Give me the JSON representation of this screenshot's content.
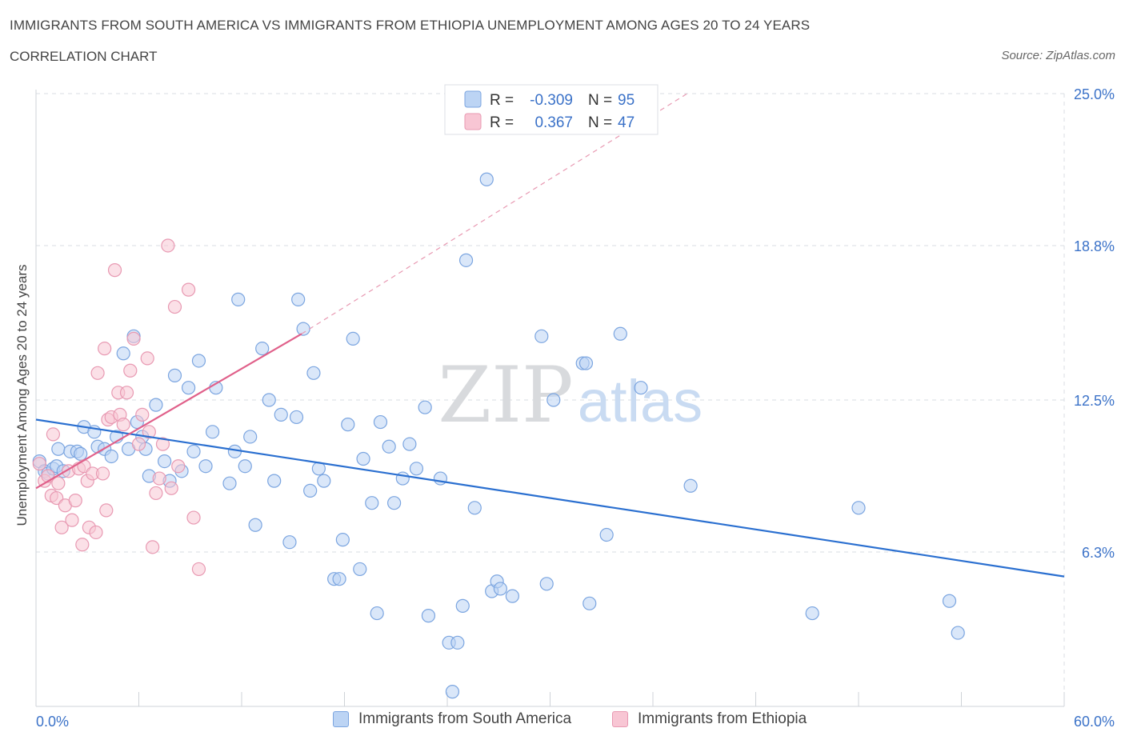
{
  "header": {
    "title": "IMMIGRANTS FROM SOUTH AMERICA VS IMMIGRANTS FROM ETHIOPIA UNEMPLOYMENT AMONG AGES 20 TO 24 YEARS",
    "subtitle": "CORRELATION CHART",
    "source": "Source: ZipAtlas.com"
  },
  "watermark": {
    "zip": "ZIP",
    "atlas": "atlas"
  },
  "colors": {
    "blue_fill": "#bcd4f4",
    "blue_stroke": "#7ba5e0",
    "blue_line": "#2a6fd0",
    "pink_fill": "#f8c6d4",
    "pink_stroke": "#e899b2",
    "pink_line": "#e0608a",
    "value_text": "#3b72c8",
    "grid": "#d9dde3"
  },
  "legend_top": {
    "rows": [
      {
        "r_label": "R =",
        "r_value": "-0.309",
        "n_label": "N =",
        "n_value": "95"
      },
      {
        "r_label": "R =",
        "r_value": "0.367",
        "n_label": "N =",
        "n_value": "47"
      }
    ]
  },
  "legend_bottom": {
    "items": [
      "Immigrants from South America",
      "Immigrants from Ethiopia"
    ]
  },
  "chart_data": {
    "type": "scatter",
    "title": "IMMIGRANTS FROM SOUTH AMERICA VS IMMIGRANTS FROM ETHIOPIA UNEMPLOYMENT AMONG AGES 20 TO 24 YEARS",
    "xlabel": "",
    "ylabel": "Unemployment Among Ages 20 to 24 years",
    "xlim": [
      0,
      60
    ],
    "ylim": [
      0,
      25.0
    ],
    "x_tick_labels": [
      "0.0%",
      "60.0%"
    ],
    "y_ticks": [
      6.3,
      12.5,
      18.8,
      25.0
    ],
    "y_tick_labels": [
      "6.3%",
      "12.5%",
      "18.8%",
      "25.0%"
    ],
    "grid": true,
    "legend_placement": "top-center",
    "series": [
      {
        "name": "Immigrants from South America",
        "r": -0.309,
        "n": 95,
        "trend": {
          "x": [
            0,
            60
          ],
          "y": [
            11.7,
            5.3
          ]
        },
        "points": [
          [
            0.2,
            10.0
          ],
          [
            0.5,
            9.6
          ],
          [
            0.7,
            9.5
          ],
          [
            1.0,
            9.7
          ],
          [
            1.2,
            9.8
          ],
          [
            1.3,
            10.5
          ],
          [
            1.6,
            9.6
          ],
          [
            2.0,
            10.4
          ],
          [
            2.4,
            10.4
          ],
          [
            2.6,
            10.3
          ],
          [
            2.8,
            11.4
          ],
          [
            3.4,
            11.2
          ],
          [
            3.6,
            10.6
          ],
          [
            4.0,
            10.5
          ],
          [
            4.4,
            10.2
          ],
          [
            4.7,
            11.0
          ],
          [
            5.1,
            14.4
          ],
          [
            5.4,
            10.5
          ],
          [
            5.7,
            15.1
          ],
          [
            5.9,
            11.6
          ],
          [
            6.2,
            11.0
          ],
          [
            6.4,
            10.5
          ],
          [
            6.6,
            9.4
          ],
          [
            7.0,
            12.3
          ],
          [
            7.5,
            10.0
          ],
          [
            7.8,
            9.2
          ],
          [
            8.1,
            13.5
          ],
          [
            8.5,
            9.6
          ],
          [
            8.9,
            13.0
          ],
          [
            9.2,
            10.4
          ],
          [
            9.5,
            14.1
          ],
          [
            9.9,
            9.8
          ],
          [
            10.3,
            11.2
          ],
          [
            10.5,
            13.0
          ],
          [
            11.3,
            9.1
          ],
          [
            11.6,
            10.4
          ],
          [
            11.8,
            16.6
          ],
          [
            12.2,
            9.8
          ],
          [
            12.5,
            11.0
          ],
          [
            12.8,
            7.4
          ],
          [
            13.2,
            14.6
          ],
          [
            13.6,
            12.5
          ],
          [
            13.9,
            9.2
          ],
          [
            14.3,
            11.9
          ],
          [
            14.8,
            6.7
          ],
          [
            15.2,
            11.8
          ],
          [
            15.3,
            16.6
          ],
          [
            15.6,
            15.4
          ],
          [
            16.0,
            8.8
          ],
          [
            16.2,
            13.6
          ],
          [
            16.5,
            9.7
          ],
          [
            16.8,
            9.2
          ],
          [
            17.4,
            5.2
          ],
          [
            17.7,
            5.2
          ],
          [
            17.9,
            6.8
          ],
          [
            18.2,
            11.5
          ],
          [
            18.5,
            15.0
          ],
          [
            18.9,
            5.6
          ],
          [
            19.1,
            10.1
          ],
          [
            19.6,
            8.3
          ],
          [
            19.9,
            3.8
          ],
          [
            20.1,
            11.6
          ],
          [
            20.6,
            10.6
          ],
          [
            20.9,
            8.3
          ],
          [
            21.4,
            9.3
          ],
          [
            21.8,
            10.7
          ],
          [
            22.2,
            9.7
          ],
          [
            22.7,
            12.2
          ],
          [
            22.9,
            3.7
          ],
          [
            23.6,
            9.3
          ],
          [
            24.1,
            2.6
          ],
          [
            24.3,
            0.6
          ],
          [
            24.6,
            2.6
          ],
          [
            24.9,
            4.1
          ],
          [
            25.1,
            18.2
          ],
          [
            25.6,
            8.1
          ],
          [
            26.3,
            21.5
          ],
          [
            26.6,
            4.7
          ],
          [
            26.9,
            5.1
          ],
          [
            27.1,
            4.8
          ],
          [
            27.8,
            4.5
          ],
          [
            29.5,
            15.1
          ],
          [
            29.8,
            5.0
          ],
          [
            30.2,
            12.5
          ],
          [
            31.9,
            14.0
          ],
          [
            32.1,
            14.0
          ],
          [
            32.3,
            4.2
          ],
          [
            33.3,
            7.0
          ],
          [
            34.1,
            15.2
          ],
          [
            35.3,
            13.0
          ],
          [
            38.2,
            9.0
          ],
          [
            45.3,
            3.8
          ],
          [
            48.0,
            8.1
          ],
          [
            53.3,
            4.3
          ],
          [
            53.8,
            3.0
          ]
        ]
      },
      {
        "name": "Immigrants from Ethiopia",
        "r": 0.367,
        "n": 47,
        "trend": {
          "x": [
            0,
            15.5
          ],
          "y": [
            8.9,
            15.2
          ]
        },
        "trend_extension": {
          "x": [
            15.5,
            38
          ],
          "y": [
            15.2,
            25.0
          ]
        },
        "points": [
          [
            0.2,
            9.9
          ],
          [
            0.5,
            9.2
          ],
          [
            0.7,
            9.4
          ],
          [
            0.9,
            8.6
          ],
          [
            1.0,
            11.1
          ],
          [
            1.2,
            8.5
          ],
          [
            1.3,
            9.1
          ],
          [
            1.5,
            7.3
          ],
          [
            1.7,
            8.2
          ],
          [
            1.9,
            9.6
          ],
          [
            2.1,
            7.6
          ],
          [
            2.3,
            8.4
          ],
          [
            2.5,
            9.7
          ],
          [
            2.7,
            6.6
          ],
          [
            2.8,
            9.8
          ],
          [
            3.0,
            9.2
          ],
          [
            3.1,
            7.3
          ],
          [
            3.3,
            9.5
          ],
          [
            3.5,
            7.1
          ],
          [
            3.6,
            13.6
          ],
          [
            3.9,
            9.5
          ],
          [
            4.0,
            14.6
          ],
          [
            4.1,
            8.0
          ],
          [
            4.2,
            11.7
          ],
          [
            4.4,
            11.8
          ],
          [
            4.6,
            17.8
          ],
          [
            4.8,
            12.8
          ],
          [
            4.9,
            11.9
          ],
          [
            5.1,
            11.5
          ],
          [
            5.3,
            12.8
          ],
          [
            5.5,
            13.7
          ],
          [
            5.7,
            15.0
          ],
          [
            6.0,
            10.7
          ],
          [
            6.2,
            11.9
          ],
          [
            6.5,
            14.2
          ],
          [
            6.6,
            11.2
          ],
          [
            6.8,
            6.5
          ],
          [
            7.0,
            8.7
          ],
          [
            7.2,
            9.3
          ],
          [
            7.4,
            10.7
          ],
          [
            7.7,
            18.8
          ],
          [
            7.9,
            8.9
          ],
          [
            8.1,
            16.3
          ],
          [
            8.3,
            9.8
          ],
          [
            8.9,
            17.0
          ],
          [
            9.2,
            7.7
          ],
          [
            9.5,
            5.6
          ]
        ]
      }
    ]
  }
}
